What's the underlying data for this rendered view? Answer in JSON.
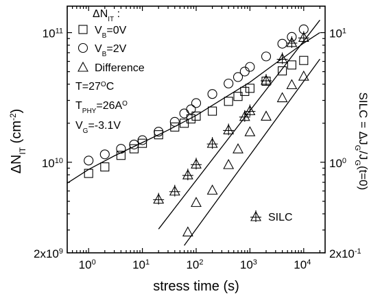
{
  "chart_data": {
    "type": "scatter",
    "x_axis": {
      "label": "stress time (s)",
      "scale": "log",
      "range": [
        0.4,
        25000
      ],
      "ticks": [
        {
          "value": 1,
          "base": "10",
          "exp": "0"
        },
        {
          "value": 10,
          "base": "10",
          "exp": "1"
        },
        {
          "value": 100,
          "base": "10",
          "exp": "2"
        },
        {
          "value": 1000,
          "base": "10",
          "exp": "3"
        },
        {
          "value": 10000,
          "base": "10",
          "exp": "4"
        }
      ]
    },
    "y_left": {
      "label": {
        "main": "ΔN",
        "sub": "IT",
        "unit_open": " (cm",
        "unit_sup": "-2",
        "unit_close": ")"
      },
      "scale": "log",
      "range": [
        2000000000.0,
        160000000000.0
      ],
      "ticks": [
        {
          "value": 2000000000.0,
          "mant": "2x10",
          "exp": "9"
        },
        {
          "value": 10000000000.0,
          "mant": "10",
          "exp": "10"
        },
        {
          "value": 100000000000.0,
          "mant": "10",
          "exp": "11"
        }
      ]
    },
    "y_right": {
      "label": {
        "a": "SILC = ΔJ",
        "a_sub": "G",
        "b": "/J",
        "b_sub": "G",
        "c": "(t=0)"
      },
      "scale": "log",
      "range": [
        0.2,
        16
      ],
      "ticks": [
        {
          "value": 0.2,
          "mant": "2x10",
          "exp": "-1"
        },
        {
          "value": 1,
          "mant": "10",
          "exp": "0"
        },
        {
          "value": 10,
          "mant": "10",
          "exp": "1"
        }
      ]
    },
    "legend": {
      "title": {
        "main": "ΔN",
        "sub": "IT",
        "tail": " :"
      },
      "entries": [
        {
          "symbol": "square",
          "text": {
            "main": "V",
            "sub": "B",
            "tail": "=0V"
          }
        },
        {
          "symbol": "circle",
          "text": {
            "main": "V",
            "sub": "B",
            "tail": "=2V"
          }
        },
        {
          "symbol": "triangle",
          "text": {
            "main": "Difference",
            "sub": "",
            "tail": ""
          }
        }
      ]
    },
    "annotations": {
      "temp": {
        "main": "T=27",
        "sup": "O",
        "tail": "C"
      },
      "thickness": {
        "main": "T",
        "sub": "PHY",
        "mid": "=26A",
        "sup": "O"
      },
      "gate": {
        "main": "V",
        "sub": "G",
        "tail": "=-3.1V"
      },
      "silc_legend": "SILC"
    },
    "series": [
      {
        "symbol": "square",
        "axis": "left",
        "text": "V_B=0V",
        "points": [
          [
            1,
            8200000000.0
          ],
          [
            2,
            9200000000.0
          ],
          [
            4,
            11300000000.0
          ],
          [
            7,
            12700000000.0
          ],
          [
            10,
            14000000000.0
          ],
          [
            20,
            16300000000.0
          ],
          [
            40,
            18700000000.0
          ],
          [
            60,
            20000000000.0
          ],
          [
            80,
            21600000000.0
          ],
          [
            100,
            22700000000.0
          ],
          [
            200,
            24800000000.0
          ],
          [
            400,
            29500000000.0
          ],
          [
            600,
            32200000000.0
          ],
          [
            800,
            35200000000.0
          ],
          [
            1000,
            37200000000.0
          ],
          [
            2000,
            42200000000.0
          ],
          [
            4000,
            50700000000.0
          ],
          [
            6000,
            56300000000.0
          ],
          [
            10000,
            61000000000.0
          ]
        ]
      },
      {
        "symbol": "circle",
        "axis": "left",
        "text": "V_B=2V",
        "points": [
          [
            1,
            10300000000.0
          ],
          [
            2,
            11500000000.0
          ],
          [
            4,
            12700000000.0
          ],
          [
            7,
            13700000000.0
          ],
          [
            10,
            14800000000.0
          ],
          [
            20,
            17200000000.0
          ],
          [
            40,
            20500000000.0
          ],
          [
            60,
            23800000000.0
          ],
          [
            80,
            25600000000.0
          ],
          [
            100,
            28600000000.0
          ],
          [
            200,
            33600000000.0
          ],
          [
            400,
            40500000000.0
          ],
          [
            600,
            45400000000.0
          ],
          [
            800,
            50100000000.0
          ],
          [
            1000,
            54400000000.0
          ],
          [
            2000,
            65500000000.0
          ],
          [
            4000,
            82100000000.0
          ],
          [
            6000,
            92700000000.0
          ],
          [
            10000,
            106000000000.0
          ]
        ]
      },
      {
        "symbol": "triangle",
        "axis": "left",
        "text": "Difference",
        "points": [
          [
            70,
            2900000000.0
          ],
          [
            100,
            4900000000.0
          ],
          [
            200,
            6100000000.0
          ],
          [
            400,
            9600000000.0
          ],
          [
            600,
            12700000000.0
          ],
          [
            1000,
            17200000000.0
          ],
          [
            2000,
            22700000000.0
          ],
          [
            4000,
            31500000000.0
          ],
          [
            6000,
            39700000000.0
          ],
          [
            10000,
            46200000000.0
          ]
        ]
      },
      {
        "symbol": "triangle-cross",
        "axis": "right",
        "text": "SILC",
        "points": [
          [
            20,
            0.52
          ],
          [
            40,
            0.6
          ],
          [
            70,
            0.8
          ],
          [
            100,
            0.97
          ],
          [
            200,
            1.4
          ],
          [
            400,
            1.78
          ],
          [
            800,
            2.26
          ],
          [
            1000,
            2.5
          ],
          [
            2000,
            4.3
          ],
          [
            4000,
            6.3
          ],
          [
            6000,
            8.4
          ],
          [
            10000,
            9.2
          ]
        ]
      }
    ],
    "fit_lines": [
      {
        "axis": "left",
        "points": [
          [
            0.4,
            6900000000.0
          ],
          [
            1,
            8800000000.0
          ],
          [
            3,
            11200000000.0
          ],
          [
            10,
            14200000000.0
          ],
          [
            30,
            17700000000.0
          ],
          [
            100,
            23000000000.0
          ],
          [
            300,
            30500000000.0
          ],
          [
            1000,
            41500000000.0
          ],
          [
            3000,
            58000000000.0
          ],
          [
            10000,
            83000000000.0
          ],
          [
            20000,
            100000000000.0
          ]
        ]
      },
      {
        "axis": "left",
        "points": [
          [
            60,
            2280000000.0
          ],
          [
            20000,
            62500000000.0
          ]
        ]
      },
      {
        "axis": "right",
        "points": [
          [
            20,
            0.305
          ],
          [
            20000,
            12.5
          ]
        ]
      }
    ]
  }
}
